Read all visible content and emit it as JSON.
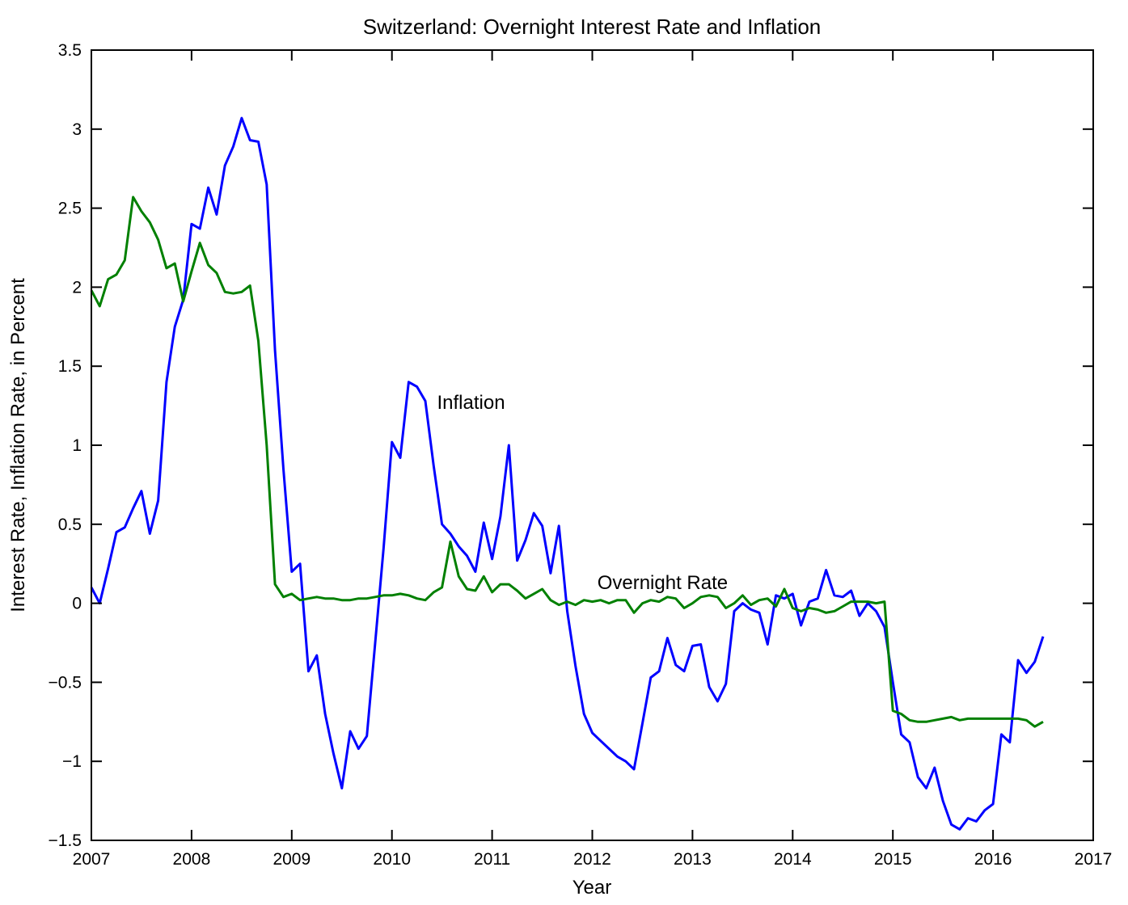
{
  "chart_data": {
    "type": "line",
    "title": "Switzerland: Overnight Interest Rate and Inflation",
    "xlabel": "Year",
    "ylabel": "Interest Rate, Inflation Rate, in Percent",
    "xlim": [
      2007,
      2017
    ],
    "ylim": [
      -1.5,
      3.5
    ],
    "x_ticks": [
      2007,
      2008,
      2009,
      2010,
      2011,
      2012,
      2013,
      2014,
      2015,
      2016,
      2017
    ],
    "y_ticks": [
      -1.5,
      -1,
      -0.5,
      0,
      0.5,
      1,
      1.5,
      2,
      2.5,
      3,
      3.5
    ],
    "grid": false,
    "legend": "in-plot text annotations",
    "axis_color": "#000000",
    "background_color": "#ffffff",
    "x_start_year": 2007,
    "x_step": "monthly",
    "series": [
      {
        "name": "Inflation",
        "color": "#0000FF",
        "values": [
          0.1,
          0.0,
          0.22,
          0.45,
          0.48,
          0.6,
          0.71,
          0.44,
          0.65,
          1.4,
          1.75,
          1.92,
          2.4,
          2.37,
          2.63,
          2.46,
          2.77,
          2.89,
          3.07,
          2.93,
          2.92,
          2.65,
          1.6,
          0.85,
          0.2,
          0.25,
          -0.43,
          -0.33,
          -0.7,
          -0.95,
          -1.17,
          -0.81,
          -0.92,
          -0.84,
          -0.25,
          0.35,
          1.02,
          0.92,
          1.4,
          1.37,
          1.28,
          0.87,
          0.5,
          0.44,
          0.36,
          0.3,
          0.2,
          0.51,
          0.28,
          0.55,
          1.0,
          0.27,
          0.4,
          0.57,
          0.49,
          0.19,
          0.49,
          -0.05,
          -0.4,
          -0.7,
          -0.82,
          -0.87,
          -0.92,
          -0.97,
          -1.0,
          -1.05,
          -0.76,
          -0.47,
          -0.43,
          -0.22,
          -0.39,
          -0.43,
          -0.27,
          -0.26,
          -0.53,
          -0.62,
          -0.51,
          -0.05,
          0.0,
          -0.04,
          -0.06,
          -0.26,
          0.05,
          0.03,
          0.06,
          -0.14,
          0.01,
          0.03,
          0.21,
          0.05,
          0.04,
          0.08,
          -0.08,
          0.0,
          -0.05,
          -0.15,
          -0.5,
          -0.83,
          -0.88,
          -1.1,
          -1.17,
          -1.04,
          -1.25,
          -1.4,
          -1.43,
          -1.36,
          -1.38,
          -1.31,
          -1.27,
          -0.83,
          -0.88,
          -0.36,
          -0.44,
          -0.37,
          -0.21
        ]
      },
      {
        "name": "Overnight Rate",
        "color": "#008000",
        "values": [
          1.98,
          1.88,
          2.05,
          2.08,
          2.17,
          2.57,
          2.48,
          2.41,
          2.3,
          2.12,
          2.15,
          1.91,
          2.1,
          2.28,
          2.14,
          2.09,
          1.97,
          1.96,
          1.97,
          2.01,
          1.66,
          1.0,
          0.12,
          0.04,
          0.06,
          0.02,
          0.03,
          0.04,
          0.03,
          0.03,
          0.02,
          0.02,
          0.03,
          0.03,
          0.04,
          0.05,
          0.05,
          0.06,
          0.05,
          0.03,
          0.02,
          0.07,
          0.1,
          0.39,
          0.17,
          0.09,
          0.08,
          0.17,
          0.07,
          0.12,
          0.12,
          0.08,
          0.03,
          0.06,
          0.09,
          0.02,
          -0.01,
          0.01,
          -0.01,
          0.02,
          0.01,
          0.02,
          0.0,
          0.02,
          0.02,
          -0.06,
          0.0,
          0.02,
          0.01,
          0.04,
          0.03,
          -0.03,
          0.0,
          0.04,
          0.05,
          0.04,
          -0.03,
          0.0,
          0.05,
          -0.01,
          0.02,
          0.03,
          -0.02,
          0.09,
          -0.03,
          -0.05,
          -0.03,
          -0.04,
          -0.06,
          -0.05,
          -0.02,
          0.01,
          0.01,
          0.01,
          0.0,
          0.01,
          -0.68,
          -0.7,
          -0.74,
          -0.75,
          -0.75,
          -0.74,
          -0.73,
          -0.72,
          -0.74,
          -0.73,
          -0.73,
          -0.73,
          -0.73,
          -0.73,
          -0.73,
          -0.73,
          -0.74,
          -0.78,
          -0.75
        ]
      }
    ],
    "annotations": [
      {
        "text": "Inflation",
        "x": 2010.45,
        "y": 1.27
      },
      {
        "text": "Overnight Rate",
        "x": 2012.05,
        "y": 0.13
      }
    ]
  }
}
